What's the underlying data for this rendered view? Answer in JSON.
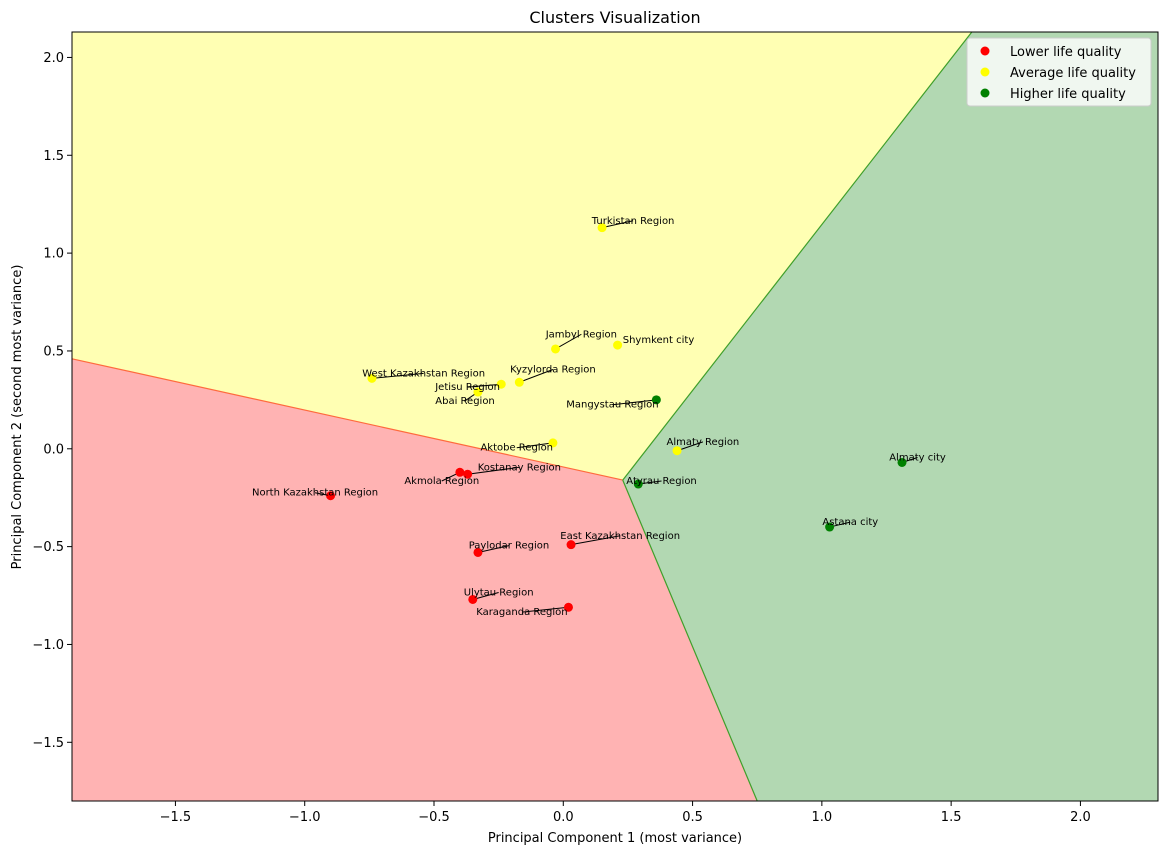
{
  "chart_data": {
    "type": "scatter",
    "title": "Clusters Visualization",
    "xlabel": "Principal Component 1 (most variance)",
    "ylabel": "Principal Component 2 (second most variance)",
    "xlim": [
      -1.9,
      2.3
    ],
    "ylim": [
      -1.8,
      2.13
    ],
    "xticks": [
      -1.5,
      -1.0,
      -0.5,
      0.0,
      0.5,
      1.0,
      1.5,
      2.0
    ],
    "xtick_labels": [
      "−1.5",
      "−1.0",
      "−0.5",
      "0.0",
      "0.5",
      "1.0",
      "1.5",
      "2.0"
    ],
    "yticks": [
      -1.5,
      -1.0,
      -0.5,
      0.0,
      0.5,
      1.0,
      1.5,
      2.0
    ],
    "ytick_labels": [
      "−1.5",
      "−1.0",
      "−0.5",
      "0.0",
      "0.5",
      "1.0",
      "1.5",
      "2.0"
    ],
    "grid": false,
    "legend_position": "top-right",
    "regions": [
      {
        "cluster": "low",
        "color": "#ffb3b3",
        "polygon": [
          [
            -1.9,
            0.46
          ],
          [
            0.23,
            -0.16
          ],
          [
            0.75,
            -1.8
          ],
          [
            -1.9,
            -1.8
          ]
        ]
      },
      {
        "cluster": "avg",
        "color": "#ffffb3",
        "polygon": [
          [
            -1.9,
            0.46
          ],
          [
            0.23,
            -0.16
          ],
          [
            1.58,
            2.13
          ],
          [
            -1.9,
            2.13
          ]
        ]
      },
      {
        "cluster": "high",
        "color": "#b2d8b2",
        "polygon": [
          [
            0.23,
            -0.16
          ],
          [
            1.58,
            2.13
          ],
          [
            2.3,
            2.13
          ],
          [
            2.3,
            -1.8
          ],
          [
            0.75,
            -1.8
          ]
        ]
      }
    ],
    "series": [
      {
        "name": "Lower life quality",
        "cluster": "low",
        "color": "#ff0000"
      },
      {
        "name": "Average life quality",
        "cluster": "avg",
        "color": "#ffff00"
      },
      {
        "name": "Higher life quality",
        "cluster": "high",
        "color": "#008000"
      }
    ],
    "points": [
      {
        "label": "Turkistan Region",
        "x": 0.15,
        "y": 1.13,
        "cluster": "avg",
        "lx": 0.27,
        "ly": 1.15,
        "anchor": "middle"
      },
      {
        "label": "Jambyl Region",
        "x": -0.03,
        "y": 0.51,
        "cluster": "avg",
        "lx": 0.07,
        "ly": 0.57,
        "anchor": "middle"
      },
      {
        "label": "Shymkent city",
        "x": 0.21,
        "y": 0.53,
        "cluster": "avg",
        "lx": 0.23,
        "ly": 0.54,
        "anchor": "start"
      },
      {
        "label": "Kyzylorda Region",
        "x": -0.17,
        "y": 0.34,
        "cluster": "avg",
        "lx": -0.04,
        "ly": 0.39,
        "anchor": "middle"
      },
      {
        "label": "West Kazakhstan Region",
        "x": -0.74,
        "y": 0.36,
        "cluster": "avg",
        "lx": -0.54,
        "ly": 0.37,
        "anchor": "middle"
      },
      {
        "label": "Jetisu Region",
        "x": -0.24,
        "y": 0.33,
        "cluster": "avg",
        "lx": -0.37,
        "ly": 0.3,
        "anchor": "middle"
      },
      {
        "label": "Abai Region",
        "x": -0.33,
        "y": 0.29,
        "cluster": "avg",
        "lx": -0.38,
        "ly": 0.23,
        "anchor": "middle"
      },
      {
        "label": "Aktobe Region",
        "x": -0.04,
        "y": 0.03,
        "cluster": "avg",
        "lx": -0.18,
        "ly": -0.01,
        "anchor": "middle"
      },
      {
        "label": "Almaty Region",
        "x": 0.44,
        "y": -0.01,
        "cluster": "avg",
        "lx": 0.54,
        "ly": 0.02,
        "anchor": "middle"
      },
      {
        "label": "Mangystau Region",
        "x": 0.36,
        "y": 0.25,
        "cluster": "high",
        "lx": 0.19,
        "ly": 0.21,
        "anchor": "middle"
      },
      {
        "label": "Almaty city",
        "x": 1.31,
        "y": -0.07,
        "cluster": "high",
        "lx": 1.37,
        "ly": -0.06,
        "anchor": "middle"
      },
      {
        "label": "Atyrau Region",
        "x": 0.29,
        "y": -0.18,
        "cluster": "high",
        "lx": 0.38,
        "ly": -0.18,
        "anchor": "middle"
      },
      {
        "label": "Astana city",
        "x": 1.03,
        "y": -0.4,
        "cluster": "high",
        "lx": 1.11,
        "ly": -0.39,
        "anchor": "middle"
      },
      {
        "label": "Akmola Region",
        "x": -0.4,
        "y": -0.12,
        "cluster": "low",
        "lx": -0.47,
        "ly": -0.18,
        "anchor": "middle"
      },
      {
        "label": "Kostanay Region",
        "x": -0.37,
        "y": -0.13,
        "cluster": "low",
        "lx": -0.17,
        "ly": -0.11,
        "anchor": "middle"
      },
      {
        "label": "North Kazakhstan Region",
        "x": -0.9,
        "y": -0.24,
        "cluster": "low",
        "lx": -0.96,
        "ly": -0.24,
        "anchor": "middle"
      },
      {
        "label": "Paylodar Region",
        "x": -0.33,
        "y": -0.53,
        "cluster": "low",
        "lx": -0.21,
        "ly": -0.51,
        "anchor": "middle"
      },
      {
        "label": "East Kazakhstan Region",
        "x": 0.03,
        "y": -0.49,
        "cluster": "low",
        "lx": 0.22,
        "ly": -0.46,
        "anchor": "middle"
      },
      {
        "label": "Ulytau Region",
        "x": -0.35,
        "y": -0.77,
        "cluster": "low",
        "lx": -0.25,
        "ly": -0.75,
        "anchor": "middle"
      },
      {
        "label": "Karaganda Region",
        "x": 0.02,
        "y": -0.81,
        "cluster": "low",
        "lx": -0.16,
        "ly": -0.85,
        "anchor": "middle"
      }
    ]
  }
}
